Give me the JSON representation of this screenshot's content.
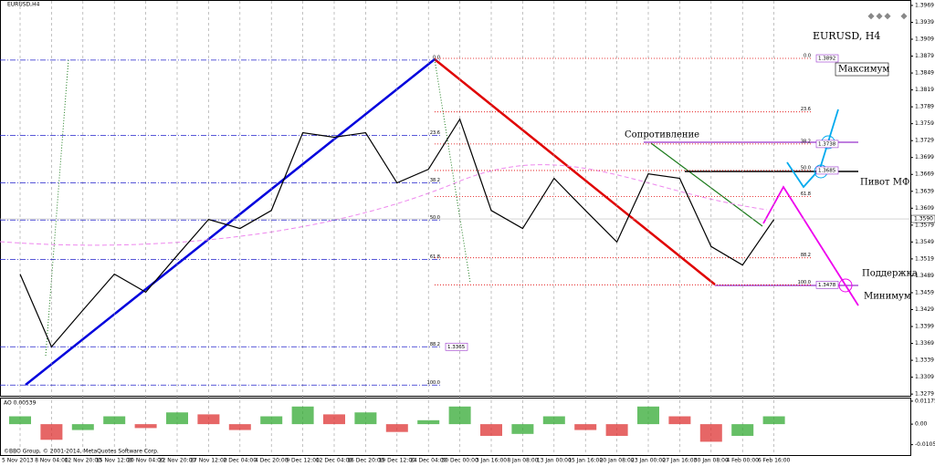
{
  "chart_data": [
    {
      "type": "line",
      "symbol": "EURUSD,H4",
      "title": "EURUSD, H4",
      "categories": [
        "5 Nov 2013",
        "8 Nov 04:00",
        "12 Nov 20:00",
        "15 Nov 12:00",
        "20 Nov 04:00",
        "22 Nov 20:00",
        "27 Nov 12:00",
        "2 Dec 04:00",
        "4 Dec 20:00",
        "9 Dec 12:00",
        "12 Dec 04:00",
        "16 Dec 20:00",
        "19 Dec 12:00",
        "24 Dec 04:00",
        "30 Dec 00:00",
        "3 Jan 16:00",
        "8 Jan 08:00",
        "13 Jan 00:00",
        "15 Jan 16:00",
        "20 Jan 08:00",
        "23 Jan 00:00",
        "27 Jan 16:00",
        "30 Jan 08:00",
        "4 Feb 00:00",
        "6 Feb 16:00"
      ],
      "series": [
        {
          "color": "#000000",
          "values": [
            1.3492,
            1.3363,
            1.3428,
            1.3492,
            1.346,
            1.3525,
            1.3589,
            1.3573,
            1.3605,
            1.3743,
            1.3735,
            1.3743,
            1.3654,
            1.3678,
            1.3767,
            1.3605,
            1.3573,
            1.3662,
            1.3605,
            1.3549,
            1.367,
            1.3662,
            1.3541,
            1.3508,
            1.3589
          ]
        }
      ],
      "ylim": [
        1.3276,
        1.3977
      ],
      "yticks": [
        1.3969,
        1.3939,
        1.3909,
        1.3879,
        1.3849,
        1.3819,
        1.3789,
        1.3759,
        1.3729,
        1.3699,
        1.3669,
        1.3639,
        1.3609,
        1.3579,
        1.3549,
        1.3519,
        1.3489,
        1.3459,
        1.3429,
        1.3399,
        1.3369,
        1.3339,
        1.3309,
        1.3279
      ],
      "last_price": {
        "value": 1.359,
        "label": "1.3590"
      },
      "grid": true,
      "fib_left": [
        {
          "label": "0.0",
          "price": 1.3872
        },
        {
          "label": "23.6",
          "price": 1.3738
        },
        {
          "label": "38.2",
          "price": 1.3654
        },
        {
          "label": "50.0",
          "price": 1.3588
        },
        {
          "label": "61.8",
          "price": 1.3518
        },
        {
          "label": "88.2",
          "price": 1.3363,
          "tag": "1.3365"
        },
        {
          "label": "100.0",
          "price": 1.3295
        }
      ],
      "fib_right": [
        {
          "label": "0.0",
          "price": 1.3875,
          "tag": "1.3892"
        },
        {
          "label": "23.6",
          "price": 1.378
        },
        {
          "label": "38.2",
          "price": 1.3723,
          "tag": "1.3738"
        },
        {
          "label": "50.0",
          "price": 1.3676,
          "tag": "1.3685"
        },
        {
          "label": "61.8",
          "price": 1.363
        },
        {
          "label": "88.2",
          "price": 1.3521
        },
        {
          "label": "100.0",
          "price": 1.3473,
          "tag": "1.3478"
        }
      ],
      "annotations": [
        "Максимум",
        "Сопротивление",
        "Пивот МФ",
        "Поддержка",
        "Минимум"
      ]
    },
    {
      "type": "bar",
      "title": "AO 0.00539",
      "values": [
        0.004,
        -0.008,
        -0.003,
        0.004,
        -0.002,
        0.006,
        0.005,
        -0.003,
        0.004,
        0.009,
        0.005,
        0.006,
        -0.004,
        0.002,
        0.009,
        -0.006,
        -0.005,
        0.004,
        -0.003,
        -0.006,
        0.009,
        0.004,
        -0.009,
        -0.006,
        0.004
      ],
      "ylim": [
        -0.0158,
        0.0131
      ],
      "yticks": [
        0.01175,
        {
          "value": 0,
          "label": "0.00"
        },
        {
          "value": -0.0105,
          "label": "-0.01050"
        }
      ]
    }
  ],
  "footer": "©BBO Group, © 2001-2014, MetaQuotes Software Corp."
}
